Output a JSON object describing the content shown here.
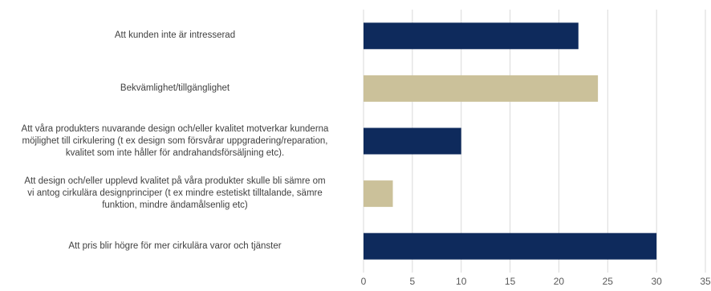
{
  "chart_data": {
    "type": "bar",
    "orientation": "horizontal",
    "categories": [
      [
        "Att kunden inte är intresserad"
      ],
      [
        "Bekvämlighet/tillgänglighet"
      ],
      [
        "Att våra produkters nuvarande design och/eller kvalitet motverkar kunderna",
        "möjlighet till cirkulering (t ex design som försvårar uppgradering/reparation,",
        "kvalitet som inte håller för andrahandsförsäljning etc)."
      ],
      [
        "Att design och/eller upplevd kvalitet på våra produkter skulle bli sämre om",
        "vi antog cirkulära designprinciper (t ex mindre estetiskt tilltalande, sämre",
        "funktion, mindre ändamålsenlig etc)"
      ],
      [
        "Att pris blir högre för mer cirkulära varor och tjänster"
      ]
    ],
    "values": [
      22,
      24,
      10,
      3,
      30
    ],
    "bar_colors": [
      "#0e2a5c",
      "#cbc19a",
      "#0e2a5c",
      "#cbc19a",
      "#0e2a5c"
    ],
    "xlim": [
      0,
      35
    ],
    "xticks": [
      "0",
      "5",
      "10",
      "15",
      "20",
      "25",
      "30",
      "35"
    ],
    "grid": true,
    "gridline_color": "#d9d9d9"
  }
}
